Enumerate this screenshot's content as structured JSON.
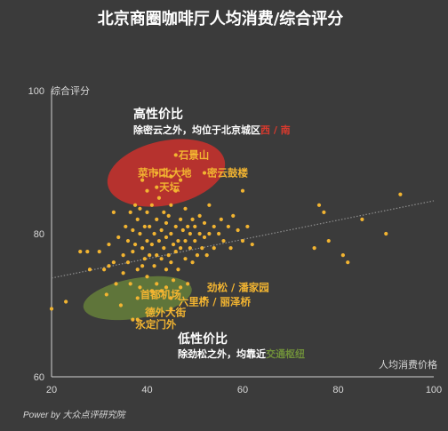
{
  "chart_data": {
    "type": "scatter",
    "title": "北京商圈咖啡厅人均消费/综合评分",
    "xlabel": "人均消费价格",
    "ylabel": "综合评分",
    "xlim": [
      20,
      100
    ],
    "ylim": [
      60,
      100
    ],
    "xticks": [
      "20",
      "40",
      "60",
      "80",
      "100"
    ],
    "yticks": [
      "60",
      "80",
      "100"
    ],
    "grid": false,
    "trendline": {
      "x": [
        20,
        100
      ],
      "y": [
        73.8,
        84.6
      ]
    },
    "colors": {
      "background": "#3b3b3b",
      "points": "#f2b431",
      "trendline": "#888888",
      "high_value_region": "#d8302a",
      "low_value_region": "#6f8f3a"
    },
    "regions": [
      {
        "name": "high",
        "center": [
          44,
          88.5
        ],
        "rx": 12.5,
        "ry": 4.5,
        "rotate": -12
      },
      {
        "name": "low",
        "center": [
          38,
          71
        ],
        "rx": 11.5,
        "ry": 2.8,
        "rotate": -10
      }
    ],
    "points": [
      {
        "x": 20,
        "y": 69.5
      },
      {
        "x": 23,
        "y": 70.5
      },
      {
        "x": 26,
        "y": 77.5
      },
      {
        "x": 27.5,
        "y": 77.5
      },
      {
        "x": 28,
        "y": 75
      },
      {
        "x": 30,
        "y": 77.5
      },
      {
        "x": 31,
        "y": 75
      },
      {
        "x": 31.5,
        "y": 71.5
      },
      {
        "x": 32,
        "y": 75.5
      },
      {
        "x": 32,
        "y": 78.5
      },
      {
        "x": 33,
        "y": 83
      },
      {
        "x": 33,
        "y": 76
      },
      {
        "x": 33.5,
        "y": 73
      },
      {
        "x": 34,
        "y": 79.5
      },
      {
        "x": 34.5,
        "y": 70
      },
      {
        "x": 35,
        "y": 77
      },
      {
        "x": 35,
        "y": 74.5
      },
      {
        "x": 35.5,
        "y": 81
      },
      {
        "x": 36,
        "y": 79
      },
      {
        "x": 36,
        "y": 76
      },
      {
        "x": 36.5,
        "y": 83
      },
      {
        "x": 36.5,
        "y": 73
      },
      {
        "x": 37,
        "y": 80.5
      },
      {
        "x": 37,
        "y": 77.5
      },
      {
        "x": 37,
        "y": 68
      },
      {
        "x": 37.5,
        "y": 84
      },
      {
        "x": 37.5,
        "y": 78.5
      },
      {
        "x": 38,
        "y": 82
      },
      {
        "x": 38,
        "y": 75
      },
      {
        "x": 38,
        "y": 71
      },
      {
        "x": 38.5,
        "y": 83.5
      },
      {
        "x": 38.5,
        "y": 80
      },
      {
        "x": 39,
        "y": 87.5
      },
      {
        "x": 39,
        "y": 78
      },
      {
        "x": 39,
        "y": 75.5
      },
      {
        "x": 39.5,
        "y": 81
      },
      {
        "x": 39.5,
        "y": 76.5
      },
      {
        "x": 40,
        "y": 86
      },
      {
        "x": 40,
        "y": 83
      },
      {
        "x": 40,
        "y": 79
      },
      {
        "x": 40,
        "y": 74
      },
      {
        "x": 40.5,
        "y": 81
      },
      {
        "x": 40.5,
        "y": 77
      },
      {
        "x": 41,
        "y": 84
      },
      {
        "x": 41,
        "y": 78.5
      },
      {
        "x": 41,
        "y": 72
      },
      {
        "x": 41.5,
        "y": 80
      },
      {
        "x": 41.5,
        "y": 75.5
      },
      {
        "x": 42,
        "y": 82
      },
      {
        "x": 42,
        "y": 77
      },
      {
        "x": 42,
        "y": 73
      },
      {
        "x": 42.5,
        "y": 79
      },
      {
        "x": 42.5,
        "y": 85
      },
      {
        "x": 43,
        "y": 80.5
      },
      {
        "x": 43,
        "y": 76.5
      },
      {
        "x": 43,
        "y": 72
      },
      {
        "x": 43.5,
        "y": 83
      },
      {
        "x": 43.5,
        "y": 78
      },
      {
        "x": 44,
        "y": 81.5
      },
      {
        "x": 44,
        "y": 75
      },
      {
        "x": 44,
        "y": 79.5
      },
      {
        "x": 44.5,
        "y": 77
      },
      {
        "x": 44.5,
        "y": 82.5
      },
      {
        "x": 45,
        "y": 80
      },
      {
        "x": 45,
        "y": 76
      },
      {
        "x": 45,
        "y": 84
      },
      {
        "x": 45,
        "y": 88
      },
      {
        "x": 45.5,
        "y": 78.5
      },
      {
        "x": 45.5,
        "y": 73.5
      },
      {
        "x": 46,
        "y": 81
      },
      {
        "x": 46,
        "y": 77.5
      },
      {
        "x": 46,
        "y": 86
      },
      {
        "x": 46.5,
        "y": 79
      },
      {
        "x": 46.5,
        "y": 75
      },
      {
        "x": 47,
        "y": 82
      },
      {
        "x": 47,
        "y": 78
      },
      {
        "x": 47,
        "y": 72.5
      },
      {
        "x": 47.5,
        "y": 80.5
      },
      {
        "x": 48,
        "y": 79
      },
      {
        "x": 48,
        "y": 76.5
      },
      {
        "x": 48,
        "y": 83.5
      },
      {
        "x": 48.5,
        "y": 81
      },
      {
        "x": 48.5,
        "y": 73
      },
      {
        "x": 49,
        "y": 78
      },
      {
        "x": 49,
        "y": 80
      },
      {
        "x": 49.5,
        "y": 82
      },
      {
        "x": 49.5,
        "y": 76
      },
      {
        "x": 50,
        "y": 79
      },
      {
        "x": 50,
        "y": 81
      },
      {
        "x": 50.5,
        "y": 77
      },
      {
        "x": 51,
        "y": 80
      },
      {
        "x": 51,
        "y": 82.5
      },
      {
        "x": 51.5,
        "y": 78
      },
      {
        "x": 52,
        "y": 79.5
      },
      {
        "x": 52,
        "y": 81.5
      },
      {
        "x": 52.5,
        "y": 77
      },
      {
        "x": 53,
        "y": 80
      },
      {
        "x": 53,
        "y": 84
      },
      {
        "x": 54,
        "y": 78
      },
      {
        "x": 54,
        "y": 81
      },
      {
        "x": 55,
        "y": 80
      },
      {
        "x": 55.5,
        "y": 82
      },
      {
        "x": 56,
        "y": 79
      },
      {
        "x": 57,
        "y": 81
      },
      {
        "x": 57.5,
        "y": 78
      },
      {
        "x": 58,
        "y": 82.5
      },
      {
        "x": 59,
        "y": 80.5
      },
      {
        "x": 60,
        "y": 86
      },
      {
        "x": 60,
        "y": 79
      },
      {
        "x": 61,
        "y": 81
      },
      {
        "x": 62,
        "y": 78.5
      },
      {
        "x": 46,
        "y": 91
      },
      {
        "x": 42,
        "y": 88.5
      },
      {
        "x": 52,
        "y": 88.5
      },
      {
        "x": 47,
        "y": 87.5
      },
      {
        "x": 42,
        "y": 86.5
      },
      {
        "x": 52,
        "y": 71
      },
      {
        "x": 45,
        "y": 71
      },
      {
        "x": 45,
        "y": 69.5
      },
      {
        "x": 38,
        "y": 68
      },
      {
        "x": 38.5,
        "y": 72.5
      },
      {
        "x": 44,
        "y": 72.5
      },
      {
        "x": 75,
        "y": 78
      },
      {
        "x": 76,
        "y": 84
      },
      {
        "x": 77,
        "y": 83
      },
      {
        "x": 78,
        "y": 79
      },
      {
        "x": 81,
        "y": 77
      },
      {
        "x": 82,
        "y": 76
      },
      {
        "x": 85,
        "y": 82
      },
      {
        "x": 93,
        "y": 85.5
      },
      {
        "x": 90,
        "y": 80
      }
    ],
    "labels": [
      {
        "text": "石景山",
        "x": 46,
        "y": 91
      },
      {
        "text": "菜市口",
        "x": 37.5,
        "y": 88.5
      },
      {
        "text": "北大地",
        "x": 42.3,
        "y": 88.5
      },
      {
        "text": "密云鼓楼",
        "x": 52,
        "y": 88.5
      },
      {
        "text": "天坛",
        "x": 42,
        "y": 86.5
      },
      {
        "text": "劲松 / 潘家园",
        "x": 52,
        "y": 72.5
      },
      {
        "text": "首都机场",
        "x": 38,
        "y": 71.5
      },
      {
        "text": "六里桥 / 丽泽桥",
        "x": 46,
        "y": 70.5
      },
      {
        "text": "德外大街",
        "x": 39,
        "y": 69
      },
      {
        "text": "永定门外",
        "x": 37,
        "y": 67.3
      }
    ],
    "annotations": [
      {
        "line1": "高性价比",
        "line2_prefix": "除密云之外，均位于北京城区",
        "line2_highlight": "西 / 南",
        "highlight_color": "#d83a2e"
      },
      {
        "line1": "低性价比",
        "line2_prefix": "除劲松之外，均靠近",
        "line2_highlight": "交通枢纽",
        "highlight_color": "#6f8f3a"
      }
    ]
  },
  "footer": {
    "credit": "Power by 大众点评研究院"
  }
}
